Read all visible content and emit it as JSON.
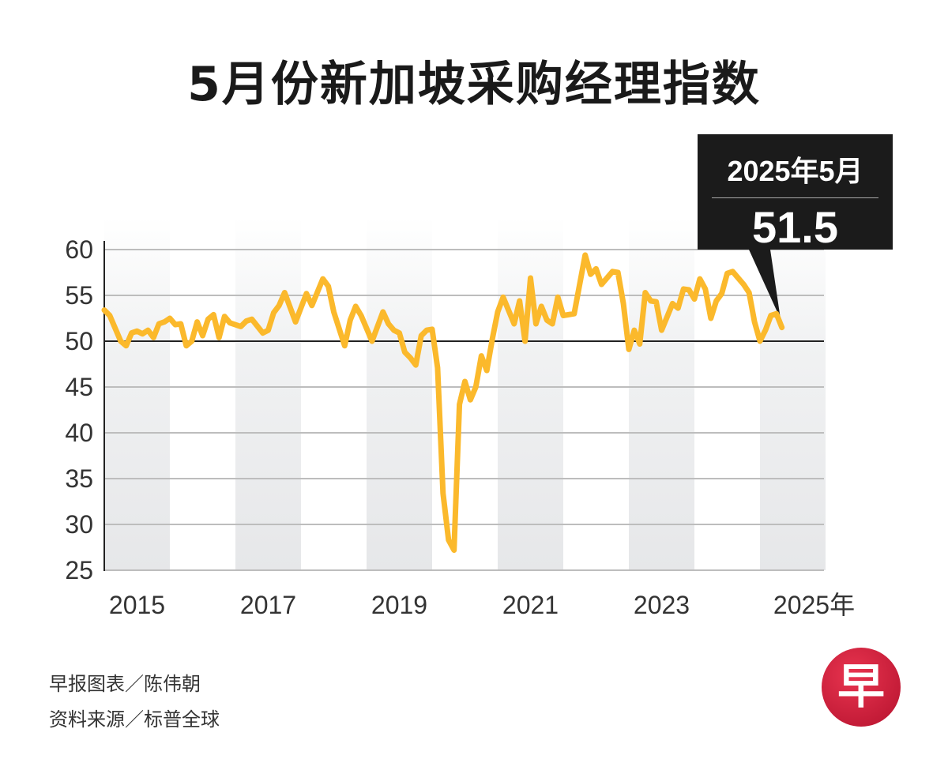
{
  "chart_data": {
    "type": "line",
    "title": "5月份新加坡采购经理指数",
    "xlabel": "",
    "ylabel": "",
    "ylim": [
      25,
      60
    ],
    "xlim": [
      "2015-01",
      "2025-12"
    ],
    "yticks": [
      "60",
      "55",
      "50",
      "45",
      "40",
      "35",
      "30",
      "25"
    ],
    "xticks": [
      "2015",
      "2017",
      "2019",
      "2021",
      "2023",
      "2025年"
    ],
    "reference_line": 50,
    "grid": true,
    "alternating_year_bands": true,
    "line_color": "#fbb92c",
    "annotation": {
      "date": "2025年5月",
      "value": "51.5"
    },
    "series": [
      {
        "points": [
          [
            "2015-01",
            53.4
          ],
          [
            "2015-02",
            52.8
          ],
          [
            "2015-04",
            50.0
          ],
          [
            "2015-05",
            49.5
          ],
          [
            "2015-06",
            50.9
          ],
          [
            "2015-07",
            51.1
          ],
          [
            "2015-08",
            50.8
          ],
          [
            "2015-09",
            51.2
          ],
          [
            "2015-10",
            50.4
          ],
          [
            "2015-11",
            51.9
          ],
          [
            "2015-12",
            52.1
          ],
          [
            "2016-01",
            52.5
          ],
          [
            "2016-02",
            51.8
          ],
          [
            "2016-03",
            51.9
          ],
          [
            "2016-04",
            49.5
          ],
          [
            "2016-05",
            50.0
          ],
          [
            "2016-06",
            52.1
          ],
          [
            "2016-07",
            50.6
          ],
          [
            "2016-08",
            52.4
          ],
          [
            "2016-09",
            52.9
          ],
          [
            "2016-10",
            50.4
          ],
          [
            "2016-11",
            52.7
          ],
          [
            "2016-12",
            52.0
          ],
          [
            "2017-02",
            51.6
          ],
          [
            "2017-03",
            52.2
          ],
          [
            "2017-04",
            52.4
          ],
          [
            "2017-06",
            50.9
          ],
          [
            "2017-07",
            51.2
          ],
          [
            "2017-08",
            53.1
          ],
          [
            "2017-09",
            53.9
          ],
          [
            "2017-10",
            55.3
          ],
          [
            "2017-12",
            52.1
          ],
          [
            "2018-02",
            55.2
          ],
          [
            "2018-03",
            53.9
          ],
          [
            "2018-05",
            56.8
          ],
          [
            "2018-06",
            56.0
          ],
          [
            "2018-07",
            53.2
          ],
          [
            "2018-09",
            49.5
          ],
          [
            "2018-10",
            52.3
          ],
          [
            "2018-11",
            53.8
          ],
          [
            "2018-12",
            52.8
          ],
          [
            "2019-02",
            50.0
          ],
          [
            "2019-04",
            53.2
          ],
          [
            "2019-05",
            51.9
          ],
          [
            "2019-06",
            51.2
          ],
          [
            "2019-07",
            50.9
          ],
          [
            "2019-08",
            48.8
          ],
          [
            "2019-09",
            48.2
          ],
          [
            "2019-10",
            47.4
          ],
          [
            "2019-11",
            50.6
          ],
          [
            "2019-12",
            51.2
          ],
          [
            "2020-01",
            51.3
          ],
          [
            "2020-02",
            47.1
          ],
          [
            "2020-03",
            33.4
          ],
          [
            "2020-04",
            28.3
          ],
          [
            "2020-05",
            27.2
          ],
          [
            "2020-06",
            43.1
          ],
          [
            "2020-07",
            45.6
          ],
          [
            "2020-08",
            43.6
          ],
          [
            "2020-09",
            45.0
          ],
          [
            "2020-10",
            48.4
          ],
          [
            "2020-11",
            46.8
          ],
          [
            "2020-12",
            50.2
          ],
          [
            "2021-01",
            53.2
          ],
          [
            "2021-02",
            54.8
          ],
          [
            "2021-04",
            51.9
          ],
          [
            "2021-05",
            54.4
          ],
          [
            "2021-06",
            50.0
          ],
          [
            "2021-07",
            56.9
          ],
          [
            "2021-08",
            51.9
          ],
          [
            "2021-09",
            53.8
          ],
          [
            "2021-10",
            52.3
          ],
          [
            "2021-11",
            51.9
          ],
          [
            "2021-12",
            54.8
          ],
          [
            "2022-01",
            52.8
          ],
          [
            "2022-03",
            53.0
          ],
          [
            "2022-05",
            59.4
          ],
          [
            "2022-06",
            57.3
          ],
          [
            "2022-07",
            57.9
          ],
          [
            "2022-08",
            56.2
          ],
          [
            "2022-10",
            57.6
          ],
          [
            "2022-11",
            57.5
          ],
          [
            "2022-12",
            54.1
          ],
          [
            "2023-01",
            49.1
          ],
          [
            "2023-02",
            51.2
          ],
          [
            "2023-03",
            49.7
          ],
          [
            "2023-04",
            55.3
          ],
          [
            "2023-05",
            54.4
          ],
          [
            "2023-06",
            54.3
          ],
          [
            "2023-07",
            51.2
          ],
          [
            "2023-09",
            54.1
          ],
          [
            "2023-10",
            53.6
          ],
          [
            "2023-11",
            55.7
          ],
          [
            "2023-12",
            55.6
          ],
          [
            "2024-01",
            54.6
          ],
          [
            "2024-02",
            56.8
          ],
          [
            "2024-03",
            55.7
          ],
          [
            "2024-04",
            52.5
          ],
          [
            "2024-05",
            54.4
          ],
          [
            "2024-06",
            55.2
          ],
          [
            "2024-07",
            57.4
          ],
          [
            "2024-08",
            57.6
          ],
          [
            "2024-10",
            56.2
          ],
          [
            "2024-11",
            55.3
          ],
          [
            "2024-12",
            52.1
          ],
          [
            "2025-01",
            50.0
          ],
          [
            "2025-02",
            51.2
          ],
          [
            "2025-03",
            52.8
          ],
          [
            "2025-04",
            53.0
          ],
          [
            "2025-05",
            51.5
          ]
        ]
      }
    ]
  },
  "footer": {
    "credit": "早报图表／陈伟朝",
    "source": "资料来源／标普全球"
  },
  "logo": {
    "text": "早",
    "color": "#c8173a"
  }
}
